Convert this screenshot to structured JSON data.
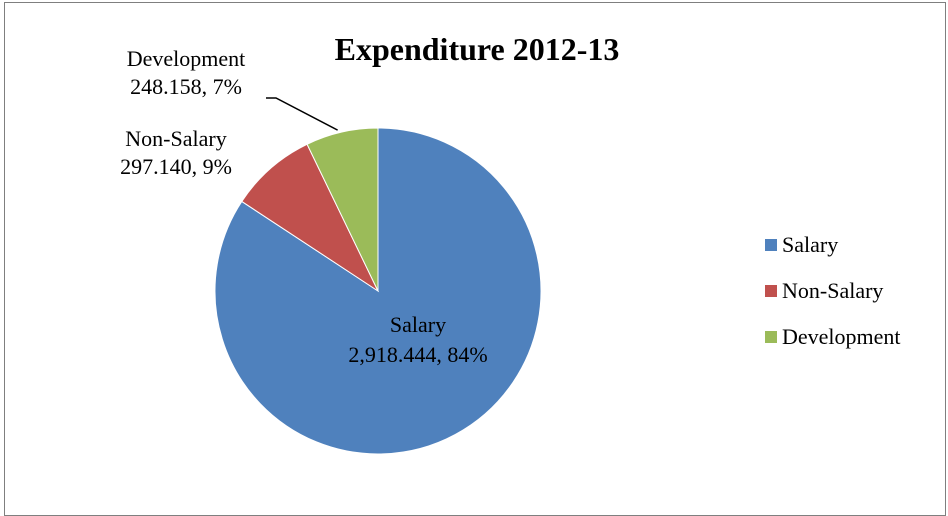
{
  "chart_data": {
    "type": "pie",
    "title": "Expenditure 2012-13",
    "categories": [
      "Salary",
      "Non-Salary",
      "Development"
    ],
    "values": [
      2918.444,
      297.14,
      248.158
    ],
    "percents": [
      84,
      9,
      7
    ],
    "colors": [
      "#4f81bd",
      "#c0504d",
      "#9bbb59"
    ],
    "data_labels": [
      [
        "Salary",
        "2,918.444, 84%"
      ],
      [
        "Non-Salary",
        "297.140, 9%"
      ],
      [
        "Development",
        "248.158,  7%"
      ]
    ],
    "legend": {
      "placement": "right",
      "entries": [
        "Salary",
        "Non-Salary",
        "Development"
      ]
    },
    "start_angle": "12 o'clock",
    "direction": "clockwise"
  }
}
